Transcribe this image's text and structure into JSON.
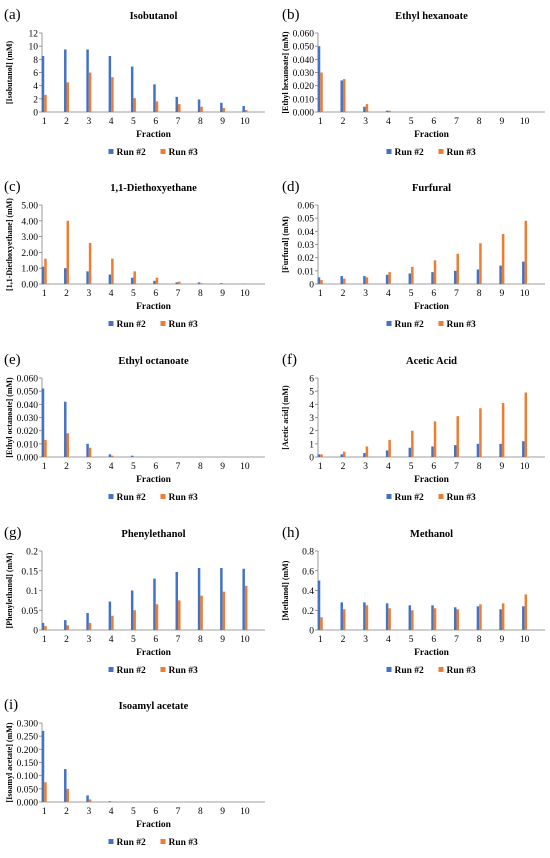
{
  "legend_labels": [
    "Run #2",
    "Run #3"
  ],
  "colors": {
    "run2": "#4472C4",
    "run3": "#ED7D31",
    "axis": "#7f7f7f",
    "text": "#000000"
  },
  "chart_data": [
    {
      "panel_label": "(a)",
      "type": "bar",
      "title": "Isobutanol",
      "xlabel": "Fraction",
      "ylabel": "[Isobutanol] (mM)",
      "categories": [
        "1",
        "2",
        "3",
        "4",
        "5",
        "6",
        "7",
        "8",
        "9",
        "10"
      ],
      "ylim": [
        0,
        12
      ],
      "yticks": [
        "0",
        "2",
        "4",
        "6",
        "8",
        "10",
        "12"
      ],
      "legend": "bottom",
      "series": [
        {
          "name": "Run #2",
          "values": [
            8.5,
            9.5,
            9.5,
            8.5,
            6.9,
            4.2,
            2.3,
            1.9,
            1.4,
            0.9
          ]
        },
        {
          "name": "Run #3",
          "values": [
            2.6,
            4.5,
            6.0,
            5.3,
            2.1,
            1.6,
            1.2,
            0.8,
            0.6,
            0.3
          ]
        }
      ]
    },
    {
      "panel_label": "(b)",
      "type": "bar",
      "title": "Ethyl hexanoate",
      "xlabel": "Fraction",
      "ylabel": "[Ethyl hexanoate] (mM)",
      "categories": [
        "1",
        "2",
        "3",
        "4",
        "5",
        "6",
        "7",
        "8",
        "9",
        "10"
      ],
      "ylim": [
        0,
        0.06
      ],
      "yticks": [
        "0.000",
        "0.010",
        "0.020",
        "0.030",
        "0.040",
        "0.050",
        "0.060"
      ],
      "legend": "bottom",
      "series": [
        {
          "name": "Run #2",
          "values": [
            0.05,
            0.024,
            0.004,
            0.001,
            0,
            0,
            0,
            0,
            0,
            0
          ]
        },
        {
          "name": "Run #3",
          "values": [
            0.03,
            0.025,
            0.006,
            0.001,
            0,
            0,
            0,
            0,
            0,
            0
          ]
        }
      ]
    },
    {
      "panel_label": "(c)",
      "type": "bar",
      "title": "1,1-Diethoxyethane",
      "xlabel": "Fraction",
      "ylabel": "[1,1-Diethoxyethane] (mM)",
      "categories": [
        "1",
        "2",
        "3",
        "4",
        "5",
        "6",
        "7",
        "8",
        "9",
        "10"
      ],
      "ylim": [
        0,
        5
      ],
      "yticks": [
        "0.00",
        "1.00",
        "2.00",
        "3.00",
        "4.00",
        "5.00"
      ],
      "legend": "bottom",
      "series": [
        {
          "name": "Run #2",
          "values": [
            1.1,
            1.0,
            0.8,
            0.6,
            0.4,
            0.2,
            0.1,
            0.1,
            0.05,
            0.02
          ]
        },
        {
          "name": "Run #3",
          "values": [
            1.6,
            4.0,
            2.6,
            1.6,
            0.8,
            0.4,
            0.15,
            0.05,
            0.03,
            0.01
          ]
        }
      ]
    },
    {
      "panel_label": "(d)",
      "type": "bar",
      "title": "Furfural",
      "xlabel": "Fraction",
      "ylabel": "[Furfural] (mM)",
      "categories": [
        "1",
        "2",
        "3",
        "4",
        "5",
        "6",
        "7",
        "8",
        "9",
        "10"
      ],
      "ylim": [
        0,
        0.06
      ],
      "yticks": [
        "0",
        "0.01",
        "0.02",
        "0.03",
        "0.04",
        "0.05",
        "0.06"
      ],
      "legend": "bottom",
      "series": [
        {
          "name": "Run #2",
          "values": [
            0.005,
            0.006,
            0.006,
            0.007,
            0.008,
            0.009,
            0.01,
            0.011,
            0.014,
            0.017
          ]
        },
        {
          "name": "Run #3",
          "values": [
            0.003,
            0.004,
            0.005,
            0.009,
            0.013,
            0.018,
            0.023,
            0.031,
            0.038,
            0.048
          ]
        }
      ]
    },
    {
      "panel_label": "(e)",
      "type": "bar",
      "title": "Ethyl octanoate",
      "xlabel": "Fraction",
      "ylabel": "[Ethyl octanoate] (mM)",
      "categories": [
        "1",
        "2",
        "3",
        "4",
        "5",
        "6",
        "7",
        "8",
        "9",
        "10"
      ],
      "ylim": [
        0,
        0.06
      ],
      "yticks": [
        "0.000",
        "0.010",
        "0.020",
        "0.030",
        "0.040",
        "0.050",
        "0.060"
      ],
      "legend": "bottom",
      "series": [
        {
          "name": "Run #2",
          "values": [
            0.052,
            0.042,
            0.01,
            0.002,
            0.001,
            0,
            0,
            0,
            0,
            0
          ]
        },
        {
          "name": "Run #3",
          "values": [
            0.013,
            0.018,
            0.007,
            0.001,
            0,
            0,
            0,
            0,
            0,
            0
          ]
        }
      ]
    },
    {
      "panel_label": "(f)",
      "type": "bar",
      "title": "Acetic Acid",
      "xlabel": "Fraction",
      "ylabel": "[Acetic acid] (mM)",
      "categories": [
        "1",
        "2",
        "3",
        "4",
        "5",
        "6",
        "7",
        "8",
        "9",
        "10"
      ],
      "ylim": [
        0,
        6
      ],
      "yticks": [
        "0",
        "1",
        "2",
        "3",
        "4",
        "5",
        "6"
      ],
      "legend": "bottom",
      "series": [
        {
          "name": "Run #2",
          "values": [
            0.2,
            0.2,
            0.3,
            0.5,
            0.7,
            0.8,
            0.9,
            1.0,
            1.0,
            1.2
          ]
        },
        {
          "name": "Run #3",
          "values": [
            0.2,
            0.4,
            0.8,
            1.3,
            2.0,
            2.7,
            3.1,
            3.7,
            4.1,
            4.9
          ]
        }
      ]
    },
    {
      "panel_label": "(g)",
      "type": "bar",
      "title": "Phenylethanol",
      "xlabel": "Fraction",
      "ylabel": "[Phenylethanol] (mM)",
      "categories": [
        "1",
        "2",
        "3",
        "4",
        "5",
        "6",
        "7",
        "8",
        "9",
        "10"
      ],
      "ylim": [
        0,
        0.2
      ],
      "yticks": [
        "0",
        "0.05",
        "0.1",
        "0.15",
        "0.2"
      ],
      "legend": "bottom",
      "series": [
        {
          "name": "Run #2",
          "values": [
            0.018,
            0.025,
            0.043,
            0.072,
            0.1,
            0.13,
            0.147,
            0.157,
            0.157,
            0.155
          ]
        },
        {
          "name": "Run #3",
          "values": [
            0.01,
            0.012,
            0.018,
            0.036,
            0.05,
            0.065,
            0.075,
            0.087,
            0.097,
            0.112
          ]
        }
      ]
    },
    {
      "panel_label": "(h)",
      "type": "bar",
      "title": "Methanol",
      "xlabel": "Fraction",
      "ylabel": "[Methanol] (mM)",
      "categories": [
        "1",
        "2",
        "3",
        "4",
        "5",
        "6",
        "7",
        "8",
        "9",
        "10"
      ],
      "ylim": [
        0,
        0.8
      ],
      "yticks": [
        "0",
        "0.2",
        "0.4",
        "0.6",
        "0.8"
      ],
      "legend": "bottom",
      "series": [
        {
          "name": "Run #2",
          "values": [
            0.5,
            0.28,
            0.28,
            0.27,
            0.25,
            0.25,
            0.23,
            0.24,
            0.21,
            0.24
          ]
        },
        {
          "name": "Run #3",
          "values": [
            0.13,
            0.21,
            0.25,
            0.22,
            0.2,
            0.22,
            0.21,
            0.26,
            0.27,
            0.36
          ]
        }
      ]
    },
    {
      "panel_label": "(i)",
      "type": "bar",
      "title": "Isoamyl acetate",
      "xlabel": "Fraction",
      "ylabel": "[Isoamyl acetate] (mM)",
      "categories": [
        "1",
        "2",
        "3",
        "4",
        "5",
        "6",
        "7",
        "8",
        "9",
        "10"
      ],
      "ylim": [
        0,
        0.3
      ],
      "yticks": [
        "0.000",
        "0.050",
        "0.100",
        "0.150",
        "0.200",
        "0.250",
        "0.300"
      ],
      "legend": "bottom",
      "series": [
        {
          "name": "Run #2",
          "values": [
            0.27,
            0.125,
            0.025,
            0.003,
            0,
            0,
            0,
            0,
            0,
            0
          ]
        },
        {
          "name": "Run #3",
          "values": [
            0.075,
            0.05,
            0.01,
            0.002,
            0,
            0,
            0,
            0,
            0,
            0
          ]
        }
      ]
    }
  ]
}
